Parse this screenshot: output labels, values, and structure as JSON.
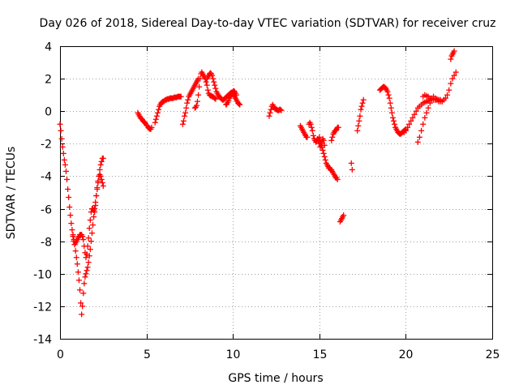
{
  "chart_data": {
    "type": "scatter",
    "title": "Day 026 of 2018, Sidereal Day-to-day VTEC variation (SDTVAR) for receiver cruz",
    "xlabel": "GPS time / hours",
    "ylabel": "SDTVAR / TECUs",
    "xlim": [
      0,
      25
    ],
    "ylim": [
      -14,
      4
    ],
    "xticks": [
      0,
      5,
      10,
      15,
      20,
      25
    ],
    "yticks": [
      -14,
      -12,
      -10,
      -8,
      -6,
      -4,
      -2,
      0,
      2,
      4
    ],
    "xtick_labels": [
      "0",
      "5",
      "10",
      "15",
      "20",
      "25"
    ],
    "ytick_labels": [
      "-14",
      "-12",
      "-10",
      "-8",
      "-6",
      "-4",
      "-2",
      "0",
      "2",
      "4"
    ],
    "grid": true,
    "marker": "+",
    "color": "#ff0000",
    "series": [
      {
        "name": "SDTVAR",
        "segments": [
          {
            "x": [
              0.0,
              0.05,
              0.1,
              0.15,
              0.2,
              0.25,
              0.3,
              0.35,
              0.4,
              0.45,
              0.5,
              0.55,
              0.6,
              0.65,
              0.7,
              0.75,
              0.8,
              0.85,
              0.9,
              0.95,
              1.0,
              1.05,
              1.1,
              1.15,
              1.2,
              1.25,
              1.3,
              1.35,
              1.4,
              1.45,
              1.5,
              1.55,
              1.6,
              1.65,
              1.7,
              1.75,
              1.8,
              1.85,
              1.9,
              1.95,
              2.0,
              2.05,
              2.1,
              2.15,
              2.2,
              2.25,
              2.3,
              2.35,
              2.4,
              2.45,
              2.5
            ],
            "y": [
              -0.8,
              -1.2,
              -1.7,
              -2.2,
              -2.6,
              -3.0,
              -3.3,
              -3.7,
              -4.2,
              -4.8,
              -5.3,
              -5.9,
              -6.4,
              -6.9,
              -7.3,
              -7.7,
              -8.0,
              -8.2,
              -8.1,
              -8.0,
              -7.9,
              -7.8,
              -7.7,
              -7.6,
              -7.6,
              -7.6,
              -7.7,
              -7.9,
              -8.3,
              -8.7,
              -9.0,
              -8.8,
              -8.3,
              -7.8,
              -7.2,
              -6.7,
              -6.2,
              -6.0,
              -6.0,
              -6.1,
              -6.2,
              -5.8,
              -5.2,
              -4.7,
              -4.3,
              -4.0,
              -3.9,
              -4.0,
              -4.2,
              -4.4,
              -4.6
            ]
          },
          {
            "x": [
              0.75,
              0.8,
              0.85,
              0.9,
              0.95,
              1.0,
              1.05,
              1.1,
              1.15,
              1.2,
              1.25,
              1.3,
              1.35,
              1.4,
              1.45,
              1.5,
              1.55,
              1.6,
              1.65,
              1.7,
              1.75,
              1.8,
              1.85,
              1.9,
              1.95,
              2.0,
              2.05,
              2.1,
              2.15,
              2.2,
              2.25,
              2.3,
              2.35,
              2.4,
              2.45,
              2.5
            ],
            "y": [
              -7.6,
              -7.9,
              -8.2,
              -8.6,
              -9.0,
              -9.4,
              -9.9,
              -10.4,
              -11.0,
              -11.8,
              -12.5,
              -12.0,
              -11.2,
              -10.6,
              -10.2,
              -10.0,
              -9.8,
              -9.6,
              -9.3,
              -8.9,
              -8.5,
              -8.0,
              -7.5,
              -7.0,
              -6.5,
              -6.0,
              -5.6,
              -5.2,
              -4.8,
              -4.4,
              -4.0,
              -3.6,
              -3.3,
              -3.1,
              -2.9,
              -2.9
            ]
          },
          {
            "x": [
              4.5,
              4.55,
              4.6,
              4.65,
              4.7,
              4.75,
              4.8,
              4.85,
              4.9,
              4.95,
              5.0,
              5.05,
              5.1,
              5.15,
              5.2,
              5.25,
              5.3
            ],
            "y": [
              -0.1,
              -0.2,
              -0.3,
              -0.4,
              -0.45,
              -0.5,
              -0.6,
              -0.65,
              -0.7,
              -0.75,
              -0.85,
              -0.9,
              -1.0,
              -1.05,
              -1.1,
              -1.1,
              -1.0
            ]
          },
          {
            "x": [
              5.5,
              5.55,
              5.6,
              5.65,
              5.7,
              5.75,
              5.8,
              5.85,
              5.9,
              5.95,
              6.0,
              6.05,
              6.1,
              6.15,
              6.2,
              6.25,
              6.3,
              6.35,
              6.4,
              6.45,
              6.5,
              6.55,
              6.6,
              6.65,
              6.7,
              6.75,
              6.8,
              6.85,
              6.9,
              6.95,
              7.0
            ],
            "y": [
              -0.7,
              -0.5,
              -0.3,
              -0.1,
              0.1,
              0.3,
              0.4,
              0.5,
              0.55,
              0.6,
              0.6,
              0.65,
              0.7,
              0.7,
              0.75,
              0.75,
              0.75,
              0.8,
              0.8,
              0.8,
              0.8,
              0.8,
              0.85,
              0.85,
              0.85,
              0.85,
              0.9,
              0.9,
              0.9,
              0.9,
              0.9
            ]
          },
          {
            "x": [
              7.1,
              7.15,
              7.2,
              7.25,
              7.3,
              7.35,
              7.4,
              7.45,
              7.5,
              7.55,
              7.6,
              7.65,
              7.7,
              7.75,
              7.8,
              7.85,
              7.9,
              7.95,
              8.0
            ],
            "y": [
              -0.8,
              -0.6,
              -0.3,
              -0.1,
              0.2,
              0.5,
              0.7,
              0.9,
              1.0,
              1.1,
              1.2,
              1.3,
              1.4,
              1.5,
              1.6,
              1.7,
              1.8,
              1.9,
              2.0
            ]
          },
          {
            "x": [
              7.8,
              7.85,
              7.9,
              7.95,
              8.0,
              8.05,
              8.1,
              8.15,
              8.2,
              8.25,
              8.3,
              8.35,
              8.4,
              8.45,
              8.5,
              8.55,
              8.6,
              8.65,
              8.7,
              8.75,
              8.8,
              8.85,
              8.9,
              8.95,
              9.0
            ],
            "y": [
              0.2,
              0.25,
              0.35,
              0.6,
              1.0,
              1.5,
              2.0,
              2.3,
              2.4,
              2.3,
              2.2,
              2.1,
              2.0,
              1.8,
              1.6,
              1.3,
              1.1,
              1.0,
              0.95,
              0.95,
              0.9,
              0.9,
              0.85,
              0.8,
              0.75
            ]
          },
          {
            "x": [
              8.5,
              8.55,
              8.6,
              8.65,
              8.7,
              8.75,
              8.8,
              8.85,
              8.9,
              8.95,
              9.0,
              9.05,
              9.1,
              9.15,
              9.2,
              9.25,
              9.3,
              9.35,
              9.4,
              9.45,
              9.5,
              9.55,
              9.6,
              9.65,
              9.7,
              9.75,
              9.8,
              9.85,
              9.9,
              9.95,
              10.0,
              10.05,
              10.1,
              10.15,
              10.2,
              10.25,
              10.3,
              10.35,
              10.4
            ],
            "y": [
              2.0,
              2.1,
              2.2,
              2.3,
              2.35,
              2.3,
              2.2,
              2.0,
              1.8,
              1.6,
              1.4,
              1.2,
              1.1,
              1.0,
              0.9,
              0.85,
              0.8,
              0.75,
              0.7,
              0.7,
              0.75,
              0.8,
              0.85,
              0.9,
              0.95,
              1.0,
              1.05,
              1.1,
              1.15,
              1.15,
              1.1,
              1.0,
              0.9,
              0.8,
              0.7,
              0.6,
              0.5,
              0.45,
              0.4
            ]
          },
          {
            "x": [
              9.6,
              9.65,
              9.7,
              9.75,
              9.8,
              9.85,
              9.9,
              9.95,
              10.0,
              10.05,
              10.1,
              10.15,
              10.2
            ],
            "y": [
              0.4,
              0.45,
              0.55,
              0.65,
              0.8,
              0.9,
              1.0,
              1.1,
              1.2,
              1.25,
              1.2,
              1.1,
              1.0
            ]
          },
          {
            "x": [
              12.1,
              12.15,
              12.2,
              12.25,
              12.3,
              12.35,
              12.4,
              12.45,
              12.5,
              12.55,
              12.6,
              12.65,
              12.7,
              12.75,
              12.8
            ],
            "y": [
              -0.3,
              -0.1,
              0.1,
              0.3,
              0.4,
              0.3,
              0.2,
              0.15,
              0.1,
              0.1,
              0.05,
              0.05,
              0.1,
              0.1,
              0.05
            ]
          },
          {
            "x": [
              13.9,
              13.95,
              14.0,
              14.05,
              14.1,
              14.15,
              14.2,
              14.25,
              14.3
            ],
            "y": [
              -0.9,
              -1.0,
              -1.1,
              -1.2,
              -1.3,
              -1.4,
              -1.5,
              -1.6,
              -1.6
            ]
          },
          {
            "x": [
              14.4,
              14.45,
              14.5,
              14.55,
              14.6,
              14.65,
              14.7,
              14.75,
              14.8,
              14.85,
              14.9,
              14.95,
              15.0,
              15.05,
              15.1,
              15.15,
              15.2,
              15.25,
              15.3
            ],
            "y": [
              -0.8,
              -0.7,
              -0.8,
              -1.0,
              -1.2,
              -1.5,
              -1.7,
              -1.8,
              -1.9,
              -1.8,
              -1.7,
              -1.8,
              -2.0,
              -2.2,
              -2.1,
              -1.9,
              -1.7,
              -1.8,
              -2.1
            ]
          },
          {
            "x": [
              15.0,
              15.05,
              15.1,
              15.15,
              15.2,
              15.25,
              15.3,
              15.35,
              15.4,
              15.45,
              15.5,
              15.55,
              15.6,
              15.65,
              15.7,
              15.75,
              15.8,
              15.85,
              15.9,
              15.95,
              16.0,
              16.05
            ],
            "y": [
              -1.6,
              -1.8,
              -2.0,
              -2.2,
              -2.4,
              -2.6,
              -2.8,
              -3.0,
              -3.2,
              -3.3,
              -3.4,
              -3.5,
              -3.5,
              -3.6,
              -3.6,
              -3.7,
              -3.8,
              -3.9,
              -4.0,
              -4.1,
              -4.1,
              -4.2
            ]
          },
          {
            "x": [
              15.7,
              15.75,
              15.8,
              15.85,
              15.9,
              15.95,
              16.0,
              16.05,
              16.1
            ],
            "y": [
              -1.8,
              -1.6,
              -1.4,
              -1.3,
              -1.2,
              -1.2,
              -1.1,
              -1.0,
              -1.0
            ]
          },
          {
            "x": [
              16.2,
              16.25,
              16.3,
              16.35,
              16.4
            ],
            "y": [
              -6.8,
              -6.7,
              -6.6,
              -6.5,
              -6.4
            ]
          },
          {
            "x": [
              16.85,
              16.9
            ],
            "y": [
              -3.2,
              -3.6
            ]
          },
          {
            "x": [
              17.2,
              17.25,
              17.3,
              17.35,
              17.4,
              17.45,
              17.5,
              17.55
            ],
            "y": [
              -1.2,
              -0.9,
              -0.6,
              -0.3,
              0.1,
              0.3,
              0.5,
              0.7
            ]
          },
          {
            "x": [
              18.5,
              18.55,
              18.6,
              18.65,
              18.7,
              18.75,
              18.8,
              18.85,
              18.9,
              18.95,
              19.0,
              19.05,
              19.1,
              19.15,
              19.2,
              19.25,
              19.3,
              19.35,
              19.4,
              19.45,
              19.5,
              19.55,
              19.6,
              19.65,
              19.7,
              19.75,
              19.8,
              19.85,
              19.9,
              19.95,
              20.0
            ],
            "y": [
              1.3,
              1.35,
              1.4,
              1.45,
              1.5,
              1.5,
              1.45,
              1.4,
              1.3,
              1.2,
              1.0,
              0.8,
              0.5,
              0.2,
              -0.1,
              -0.4,
              -0.6,
              -0.8,
              -1.0,
              -1.1,
              -1.2,
              -1.3,
              -1.35,
              -1.4,
              -1.4,
              -1.35,
              -1.3,
              -1.25,
              -1.2,
              -1.15,
              -1.1
            ]
          },
          {
            "x": [
              19.9,
              20.0,
              20.1,
              20.2,
              20.3,
              20.4,
              20.5,
              20.6,
              20.7,
              20.8,
              20.9,
              21.0,
              21.1,
              21.2,
              21.3,
              21.4,
              21.5,
              21.6,
              21.7,
              21.8,
              21.9,
              22.0
            ],
            "y": [
              -1.3,
              -1.2,
              -1.0,
              -0.8,
              -0.6,
              -0.4,
              -0.2,
              0.0,
              0.2,
              0.3,
              0.4,
              0.5,
              0.55,
              0.6,
              0.65,
              0.7,
              0.7,
              0.7,
              0.7,
              0.7,
              0.7,
              0.7
            ]
          },
          {
            "x": [
              20.7,
              20.8,
              20.9,
              21.0,
              21.1,
              21.2,
              21.3,
              21.4,
              21.5,
              21.6,
              21.7,
              21.8,
              21.9
            ],
            "y": [
              -1.9,
              -1.6,
              -1.2,
              -0.8,
              -0.4,
              -0.1,
              0.2,
              0.5,
              0.8,
              0.9,
              0.8,
              0.7,
              0.6
            ]
          },
          {
            "x": [
              22.0,
              22.1,
              22.2,
              22.3,
              22.4,
              22.5,
              22.6,
              22.7,
              22.8,
              22.9
            ],
            "y": [
              0.6,
              0.6,
              0.7,
              0.8,
              1.0,
              1.3,
              1.7,
              2.0,
              2.2,
              2.4
            ]
          },
          {
            "x": [
              21.0,
              21.1,
              21.2,
              21.3,
              21.4,
              21.5,
              21.6,
              21.7,
              21.8,
              21.9,
              22.0,
              22.1
            ],
            "y": [
              0.9,
              1.0,
              0.95,
              0.9,
              0.8,
              0.75,
              0.7,
              0.7,
              0.75,
              0.7,
              0.65,
              0.6
            ]
          },
          {
            "x": [
              22.6,
              22.65,
              22.7,
              22.75,
              22.8
            ],
            "y": [
              3.2,
              3.4,
              3.5,
              3.6,
              3.7
            ]
          }
        ]
      }
    ]
  }
}
